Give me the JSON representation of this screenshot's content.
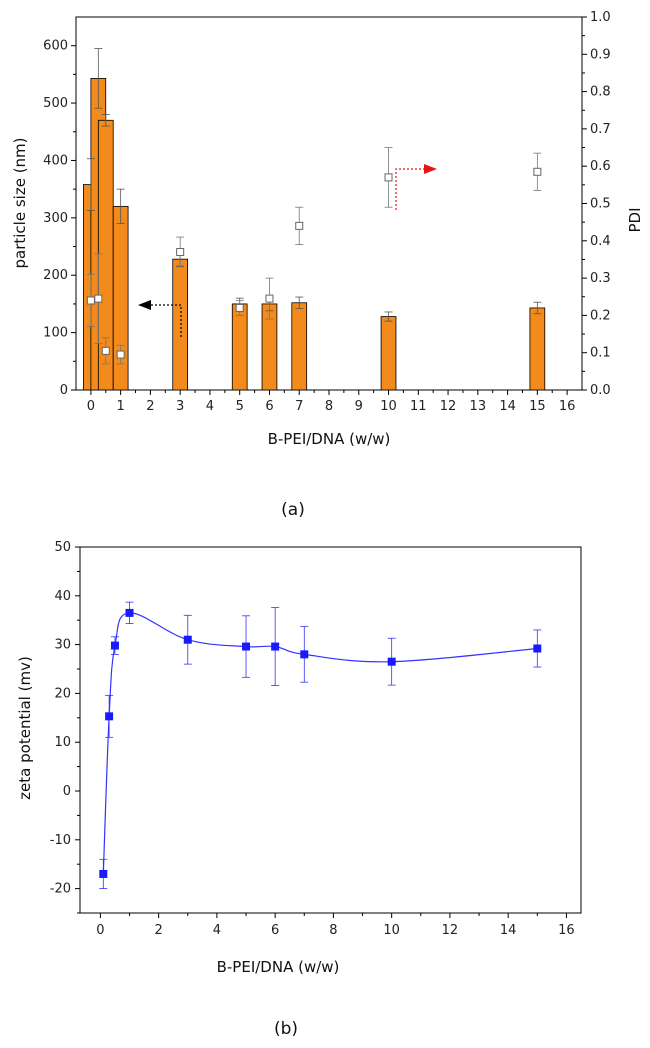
{
  "chart_data": [
    {
      "type": "bar",
      "panel": "(a)",
      "xlabel": "B-PEI/DNA (w/w)",
      "ylabel": "particle size (nm)",
      "y2label": "PDI",
      "xlim": [
        -0.5,
        16.5
      ],
      "ylim": [
        0,
        650
      ],
      "y2lim": [
        0,
        1.0
      ],
      "xticks": [
        0,
        1,
        2,
        3,
        4,
        5,
        6,
        7,
        8,
        9,
        10,
        11,
        12,
        13,
        14,
        15,
        16
      ],
      "yticks": [
        0,
        100,
        200,
        300,
        400,
        500,
        600
      ],
      "y2ticks": [
        0.0,
        0.1,
        0.2,
        0.3,
        0.4,
        0.5,
        0.6,
        0.7,
        0.8,
        0.9,
        1.0
      ],
      "bar_color": "#f28a1c",
      "series": [
        {
          "name": "particle size",
          "axis": "left",
          "x": [
            0,
            0.25,
            0.5,
            1,
            3,
            5,
            6,
            7,
            10,
            15
          ],
          "values": [
            358,
            543,
            470,
            320,
            228,
            150,
            150,
            152,
            128,
            143
          ],
          "errors": [
            45,
            52,
            10,
            30,
            12,
            10,
            12,
            10,
            8,
            10
          ]
        },
        {
          "name": "PDI",
          "axis": "right",
          "x": [
            0,
            0.25,
            0.5,
            1,
            3,
            5,
            6,
            7,
            10,
            15
          ],
          "values": [
            0.24,
            0.245,
            0.105,
            0.095,
            0.37,
            0.22,
            0.245,
            0.44,
            0.57,
            0.585
          ],
          "errors": [
            0.07,
            0.12,
            0.035,
            0.025,
            0.04,
            0.02,
            0.055,
            0.05,
            0.08,
            0.05
          ]
        }
      ],
      "annotations": [
        {
          "type": "arrow",
          "direction": "left",
          "color": "#000000",
          "points_to": "particle size"
        },
        {
          "type": "arrow",
          "direction": "right",
          "color": "#e8141c",
          "points_to": "PDI"
        }
      ]
    },
    {
      "type": "scatter",
      "panel": "(b)",
      "xlabel": "B-PEI/DNA (w/w)",
      "ylabel": "zeta potential (mv)",
      "xlim": [
        -0.7,
        16.5
      ],
      "ylim": [
        -25,
        50
      ],
      "xticks": [
        0,
        2,
        4,
        6,
        8,
        10,
        12,
        14,
        16
      ],
      "yticks": [
        -20,
        -10,
        0,
        10,
        20,
        30,
        40,
        50
      ],
      "marker_color": "#1a1aff",
      "line_color": "#3333ff",
      "series": [
        {
          "name": "zeta potential",
          "x": [
            0.1,
            0.3,
            0.5,
            1,
            3,
            5,
            6,
            7,
            10,
            15
          ],
          "values": [
            -17,
            15.3,
            29.8,
            36.5,
            31,
            29.6,
            29.6,
            28,
            26.5,
            29.2
          ],
          "errors": [
            3,
            4.3,
            1.8,
            2.2,
            5,
            6.3,
            8,
            5.7,
            4.8,
            3.8
          ]
        }
      ]
    }
  ],
  "captions": {
    "a": "(a)",
    "b": "(b)"
  }
}
